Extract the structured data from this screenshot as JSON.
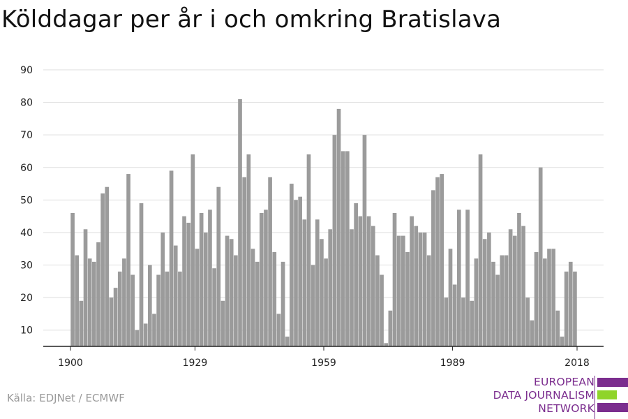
{
  "title": "Kölddagar per år i och omkring Bratislava",
  "source": "Källa: EDJNet / ECMWF",
  "logo": {
    "line1": "EUROPEAN",
    "line2": "DATA JOURNALISM",
    "line3": "NETWORK",
    "colors": {
      "purple": "#7b2d8e",
      "green": "#8fd42a"
    }
  },
  "colors": {
    "bar": "#9b9b9b",
    "grid": "#dddddd",
    "axis": "#222222",
    "tick_text": "#222222"
  },
  "chart_data": {
    "type": "bar",
    "x_start": 1900,
    "x_end": 2018,
    "ylim": [
      5,
      90
    ],
    "yticks": [
      10,
      20,
      30,
      40,
      50,
      60,
      70,
      80,
      90
    ],
    "xticks": [
      1900,
      1929,
      1959,
      1989,
      2018
    ],
    "grid": true,
    "x": [
      1900,
      1901,
      1902,
      1903,
      1904,
      1905,
      1906,
      1907,
      1908,
      1909,
      1910,
      1911,
      1912,
      1913,
      1914,
      1915,
      1916,
      1917,
      1918,
      1919,
      1920,
      1921,
      1922,
      1923,
      1924,
      1925,
      1926,
      1927,
      1928,
      1929,
      1930,
      1931,
      1932,
      1933,
      1934,
      1935,
      1936,
      1937,
      1938,
      1939,
      1940,
      1941,
      1942,
      1943,
      1944,
      1945,
      1946,
      1947,
      1948,
      1949,
      1950,
      1951,
      1952,
      1953,
      1954,
      1955,
      1956,
      1957,
      1958,
      1959,
      1960,
      1961,
      1962,
      1963,
      1964,
      1965,
      1966,
      1967,
      1968,
      1969,
      1970,
      1971,
      1972,
      1973,
      1974,
      1975,
      1976,
      1977,
      1978,
      1979,
      1980,
      1981,
      1982,
      1983,
      1984,
      1985,
      1986,
      1987,
      1988,
      1989,
      1990,
      1991,
      1992,
      1993,
      1994,
      1995,
      1996,
      1997,
      1998,
      1999,
      2000,
      2001,
      2002,
      2003,
      2004,
      2005,
      2006,
      2007,
      2008,
      2009,
      2010,
      2011,
      2012,
      2013,
      2014,
      2015,
      2016,
      2017,
      2018
    ],
    "values": [
      46,
      33,
      19,
      41,
      32,
      31,
      37,
      52,
      54,
      20,
      23,
      28,
      32,
      58,
      27,
      10,
      49,
      12,
      30,
      15,
      27,
      40,
      28,
      59,
      36,
      28,
      45,
      43,
      64,
      35,
      46,
      40,
      47,
      29,
      54,
      19,
      39,
      38,
      33,
      81,
      57,
      64,
      35,
      31,
      46,
      47,
      57,
      34,
      15,
      31,
      8,
      55,
      50,
      51,
      44,
      64,
      30,
      44,
      38,
      32,
      41,
      70,
      78,
      65,
      65,
      41,
      49,
      45,
      70,
      45,
      42,
      33,
      27,
      6,
      16,
      46,
      39,
      39,
      34,
      45,
      42,
      40,
      40,
      33,
      53,
      57,
      58,
      20,
      35,
      24,
      47,
      20,
      47,
      19,
      32,
      64,
      38,
      40,
      31,
      27,
      33,
      33,
      41,
      39,
      46,
      42,
      20,
      13,
      34,
      60,
      32,
      35,
      35,
      16,
      8,
      28,
      31,
      28,
      5
    ]
  }
}
